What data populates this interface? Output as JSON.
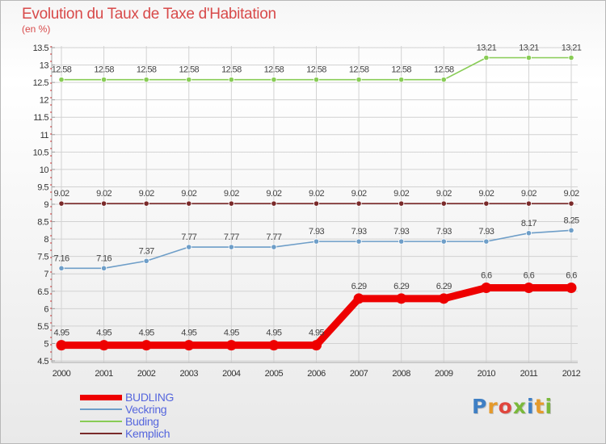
{
  "header": {
    "title": "Evolution du Taux de Taxe d'Habitation",
    "subtitle": "(en %)"
  },
  "logo": {
    "letters": [
      "P",
      "r",
      "o",
      "x",
      "i",
      "t",
      "i"
    ],
    "colors": [
      "#3f7fc4",
      "#e59a2b",
      "#e0463d",
      "#7ab83b",
      "#3f7fc4",
      "#e59a2b",
      "#7ab83b"
    ]
  },
  "chart_data": {
    "type": "line",
    "title": "Evolution du Taux de Taxe d'Habitation",
    "subtitle": "(en %)",
    "xlabel": "",
    "ylabel": "",
    "x": [
      "2000",
      "2001",
      "2002",
      "2003",
      "2004",
      "2005",
      "2006",
      "2007",
      "2008",
      "2009",
      "2010",
      "2011",
      "2012"
    ],
    "ylim": [
      4.5,
      13.5
    ],
    "y_ticks": [
      "4.5",
      "5",
      "5.5",
      "6",
      "6.5",
      "7",
      "7.5",
      "8",
      "8.5",
      "9",
      "9.5",
      "10",
      "10.5",
      "11",
      "11.5",
      "12",
      "12.5",
      "13",
      "13.5"
    ],
    "grid": true,
    "legend_position": "bottom-left",
    "series": [
      {
        "name": "BUDLING",
        "color": "#ee0000",
        "thick": true,
        "values": [
          4.95,
          4.95,
          4.95,
          4.95,
          4.95,
          4.95,
          4.95,
          6.29,
          6.29,
          6.29,
          6.6,
          6.6,
          6.6
        ],
        "labels": [
          "4.95",
          "4.95",
          "4.95",
          "4.95",
          "4.95",
          "4.95",
          "4.95",
          "6.29",
          "6.29",
          "6.29",
          "6.6",
          "6.6",
          "6.6"
        ]
      },
      {
        "name": "Veckring",
        "color": "#6e9ec8",
        "thick": false,
        "values": [
          7.16,
          7.16,
          7.37,
          7.77,
          7.77,
          7.77,
          7.93,
          7.93,
          7.93,
          7.93,
          7.93,
          8.17,
          8.25
        ],
        "labels": [
          "7.16",
          "7.16",
          "7.37",
          "7.77",
          "7.77",
          "7.77",
          "7.93",
          "7.93",
          "7.93",
          "7.93",
          "7.93",
          "8.17",
          "8.25"
        ]
      },
      {
        "name": "Buding",
        "color": "#88cc55",
        "thick": false,
        "values": [
          12.58,
          12.58,
          12.58,
          12.58,
          12.58,
          12.58,
          12.58,
          12.58,
          12.58,
          12.58,
          13.21,
          13.21,
          13.21
        ],
        "labels": [
          "12.58",
          "12.58",
          "12.58",
          "12.58",
          "12.58",
          "12.58",
          "12.58",
          "12.58",
          "12.58",
          "12.58",
          "13.21",
          "13.21",
          "13.21"
        ]
      },
      {
        "name": "Kemplich",
        "color": "#7a2a2a",
        "thick": false,
        "values": [
          9.02,
          9.02,
          9.02,
          9.02,
          9.02,
          9.02,
          9.02,
          9.02,
          9.02,
          9.02,
          9.02,
          9.02,
          9.02
        ],
        "labels": [
          "9.02",
          "9.02",
          "9.02",
          "9.02",
          "9.02",
          "9.02",
          "9.02",
          "9.02",
          "9.02",
          "9.02",
          "9.02",
          "9.02",
          "9.02"
        ]
      }
    ]
  }
}
